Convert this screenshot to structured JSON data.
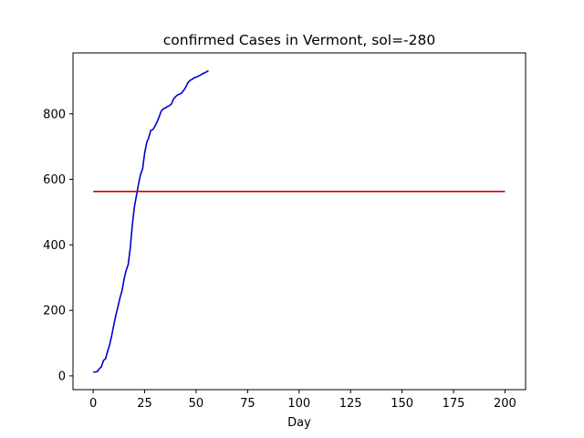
{
  "chart_data": {
    "type": "line",
    "title": "confirmed Cases in Vermont, sol=-280",
    "xlabel": "Day",
    "ylabel": "",
    "xlim": [
      -9.8,
      210
    ],
    "ylim": [
      -42,
      986
    ],
    "xticks": [
      0,
      25,
      50,
      75,
      100,
      125,
      150,
      175,
      200
    ],
    "yticks": [
      0,
      200,
      400,
      600,
      800
    ],
    "grid": false,
    "legend": "none",
    "series": [
      {
        "color": "#0000cc",
        "x": [
          0,
          1,
          2,
          3,
          4,
          5,
          6,
          7,
          8,
          9,
          10,
          11,
          12,
          13,
          14,
          15,
          16,
          17,
          18,
          19,
          20,
          21,
          22,
          23,
          24,
          25,
          26,
          27,
          28,
          29,
          30,
          31,
          32,
          33,
          34,
          35,
          36,
          37,
          38,
          39,
          40,
          41,
          42,
          43,
          44,
          45,
          46,
          47,
          48,
          49,
          50,
          51,
          52,
          53,
          54,
          55,
          56
        ],
        "y": [
          12,
          12,
          13,
          22,
          28,
          47,
          52,
          75,
          95,
          123,
          155,
          185,
          210,
          238,
          260,
          295,
          322,
          340,
          390,
          460,
          515,
          550,
          585,
          615,
          632,
          680,
          712,
          728,
          750,
          752,
          762,
          775,
          790,
          808,
          815,
          818,
          822,
          825,
          830,
          845,
          852,
          858,
          860,
          864,
          872,
          882,
          895,
          902,
          905,
          910,
          912,
          915,
          918,
          922,
          925,
          928,
          932
        ]
      },
      {
        "color": "#cc0000",
        "x": [
          0,
          200
        ],
        "y": [
          563,
          563
        ]
      }
    ]
  }
}
